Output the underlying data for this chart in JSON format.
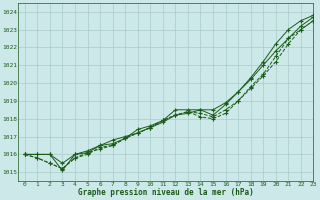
{
  "title": "Graphe pression niveau de la mer (hPa)",
  "bg_color": "#cde8e8",
  "grid_color": "#aacccc",
  "line_color": "#1a5c1a",
  "xlim": [
    -0.5,
    23
  ],
  "ylim": [
    1014.5,
    1024.5
  ],
  "yticks": [
    1015,
    1016,
    1017,
    1018,
    1019,
    1020,
    1021,
    1022,
    1023,
    1024
  ],
  "xticks": [
    0,
    1,
    2,
    3,
    4,
    5,
    6,
    7,
    8,
    9,
    10,
    11,
    12,
    13,
    14,
    15,
    16,
    17,
    18,
    19,
    20,
    21,
    22,
    23
  ],
  "series": [
    {
      "y": [
        1016.0,
        1016.0,
        1016.0,
        1015.1,
        1016.0,
        1016.1,
        1016.5,
        1016.6,
        1016.9,
        1017.4,
        1017.6,
        1017.9,
        1018.5,
        1018.5,
        1018.5,
        1018.2,
        1018.8,
        1019.5,
        1020.3,
        1021.2,
        1022.2,
        1023.0,
        1023.5,
        1023.8
      ],
      "linestyle": "-",
      "marker": "+"
    },
    {
      "y": [
        1016.0,
        1016.0,
        1016.0,
        1015.5,
        1016.0,
        1016.2,
        1016.5,
        1016.8,
        1017.0,
        1017.2,
        1017.5,
        1017.8,
        1018.2,
        1018.3,
        1018.5,
        1018.5,
        1018.9,
        1019.5,
        1020.2,
        1021.0,
        1021.8,
        1022.5,
        1023.2,
        1023.7
      ],
      "linestyle": "-",
      "marker": "+"
    },
    {
      "y": [
        1016.0,
        1015.8,
        1015.5,
        1015.2,
        1015.8,
        1016.1,
        1016.3,
        1016.5,
        1016.9,
        1017.2,
        1017.5,
        1017.9,
        1018.2,
        1018.4,
        1018.3,
        1018.1,
        1018.5,
        1019.0,
        1019.8,
        1020.5,
        1021.5,
        1022.5,
        1023.0,
        1023.5
      ],
      "linestyle": "--",
      "marker": "+"
    },
    {
      "y": [
        1016.0,
        1015.8,
        1015.5,
        1015.2,
        1015.8,
        1016.0,
        1016.4,
        1016.5,
        1016.9,
        1017.2,
        1017.5,
        1017.9,
        1018.2,
        1018.4,
        1018.1,
        1018.0,
        1018.3,
        1019.0,
        1019.7,
        1020.4,
        1021.2,
        1022.2,
        1023.0,
        1023.5
      ],
      "linestyle": "--",
      "marker": "+"
    }
  ]
}
